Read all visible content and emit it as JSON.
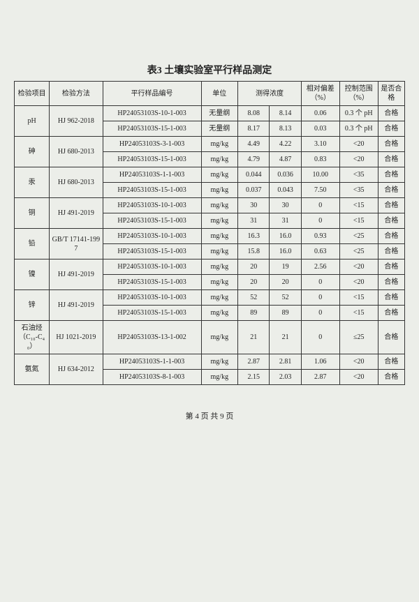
{
  "title": "表3  土壤实验室平行样品测定",
  "headers": [
    "检验项目",
    "检验方法",
    "平行样品编号",
    "单位",
    "测得浓度",
    "相对偏差（%）",
    "控制范围（%）",
    "是否合格"
  ],
  "groups": [
    {
      "item": "pH",
      "method": "HJ 962-2018",
      "rows": [
        {
          "sample": "HP24053103S-10-1-003",
          "unit": "无量纲",
          "v1": "8.08",
          "v2": "8.14",
          "dev": "0.06",
          "range": "0.3 个 pH",
          "pass": "合格"
        },
        {
          "sample": "HP24053103S-15-1-003",
          "unit": "无量纲",
          "v1": "8.17",
          "v2": "8.13",
          "dev": "0.03",
          "range": "0.3 个 pH",
          "pass": "合格"
        }
      ]
    },
    {
      "item": "砷",
      "method": "HJ 680-2013",
      "rows": [
        {
          "sample": "HP24053103S-3-1-003",
          "unit": "mg/kg",
          "v1": "4.49",
          "v2": "4.22",
          "dev": "3.10",
          "range": "<20",
          "pass": "合格"
        },
        {
          "sample": "HP24053103S-15-1-003",
          "unit": "mg/kg",
          "v1": "4.79",
          "v2": "4.87",
          "dev": "0.83",
          "range": "<20",
          "pass": "合格"
        }
      ]
    },
    {
      "item": "汞",
      "method": "HJ 680-2013",
      "rows": [
        {
          "sample": "HP24053103S-1-1-003",
          "unit": "mg/kg",
          "v1": "0.044",
          "v2": "0.036",
          "dev": "10.00",
          "range": "<35",
          "pass": "合格"
        },
        {
          "sample": "HP24053103S-15-1-003",
          "unit": "mg/kg",
          "v1": "0.037",
          "v2": "0.043",
          "dev": "7.50",
          "range": "<35",
          "pass": "合格"
        }
      ]
    },
    {
      "item": "铜",
      "method": "HJ 491-2019",
      "rows": [
        {
          "sample": "HP24053103S-10-1-003",
          "unit": "mg/kg",
          "v1": "30",
          "v2": "30",
          "dev": "0",
          "range": "<15",
          "pass": "合格"
        },
        {
          "sample": "HP24053103S-15-1-003",
          "unit": "mg/kg",
          "v1": "31",
          "v2": "31",
          "dev": "0",
          "range": "<15",
          "pass": "合格"
        }
      ]
    },
    {
      "item": "铅",
      "method": "GB/T 17141-1997",
      "rows": [
        {
          "sample": "HP24053103S-10-1-003",
          "unit": "mg/kg",
          "v1": "16.3",
          "v2": "16.0",
          "dev": "0.93",
          "range": "<25",
          "pass": "合格"
        },
        {
          "sample": "HP24053103S-15-1-003",
          "unit": "mg/kg",
          "v1": "15.8",
          "v2": "16.0",
          "dev": "0.63",
          "range": "<25",
          "pass": "合格"
        }
      ]
    },
    {
      "item": "镍",
      "method": "HJ 491-2019",
      "rows": [
        {
          "sample": "HP24053103S-10-1-003",
          "unit": "mg/kg",
          "v1": "20",
          "v2": "19",
          "dev": "2.56",
          "range": "<20",
          "pass": "合格"
        },
        {
          "sample": "HP24053103S-15-1-003",
          "unit": "mg/kg",
          "v1": "20",
          "v2": "20",
          "dev": "0",
          "range": "<20",
          "pass": "合格"
        }
      ]
    },
    {
      "item": "锌",
      "method": "HJ 491-2019",
      "rows": [
        {
          "sample": "HP24053103S-10-1-003",
          "unit": "mg/kg",
          "v1": "52",
          "v2": "52",
          "dev": "0",
          "range": "<15",
          "pass": "合格"
        },
        {
          "sample": "HP24053103S-15-1-003",
          "unit": "mg/kg",
          "v1": "89",
          "v2": "89",
          "dev": "0",
          "range": "<15",
          "pass": "合格"
        }
      ]
    },
    {
      "item": "石油烃（C₁₀-C₄₀）",
      "method": "HJ 1021-2019",
      "rows": [
        {
          "sample": "HP24053103S-13-1-002",
          "unit": "mg/kg",
          "v1": "21",
          "v2": "21",
          "dev": "0",
          "range": "≤25",
          "pass": "合格"
        }
      ]
    },
    {
      "item": "氨氮",
      "method": "HJ 634-2012",
      "rows": [
        {
          "sample": "HP24053103S-1-1-003",
          "unit": "mg/kg",
          "v1": "2.87",
          "v2": "2.81",
          "dev": "1.06",
          "range": "<20",
          "pass": "合格"
        },
        {
          "sample": "HP24053103S-8-1-003",
          "unit": "mg/kg",
          "v1": "2.15",
          "v2": "2.03",
          "dev": "2.87",
          "range": "<20",
          "pass": "合格"
        }
      ]
    }
  ],
  "footer": {
    "page": "4",
    "total": "9",
    "prefix": "第",
    "mid": "页 共",
    "suffix": "页"
  }
}
